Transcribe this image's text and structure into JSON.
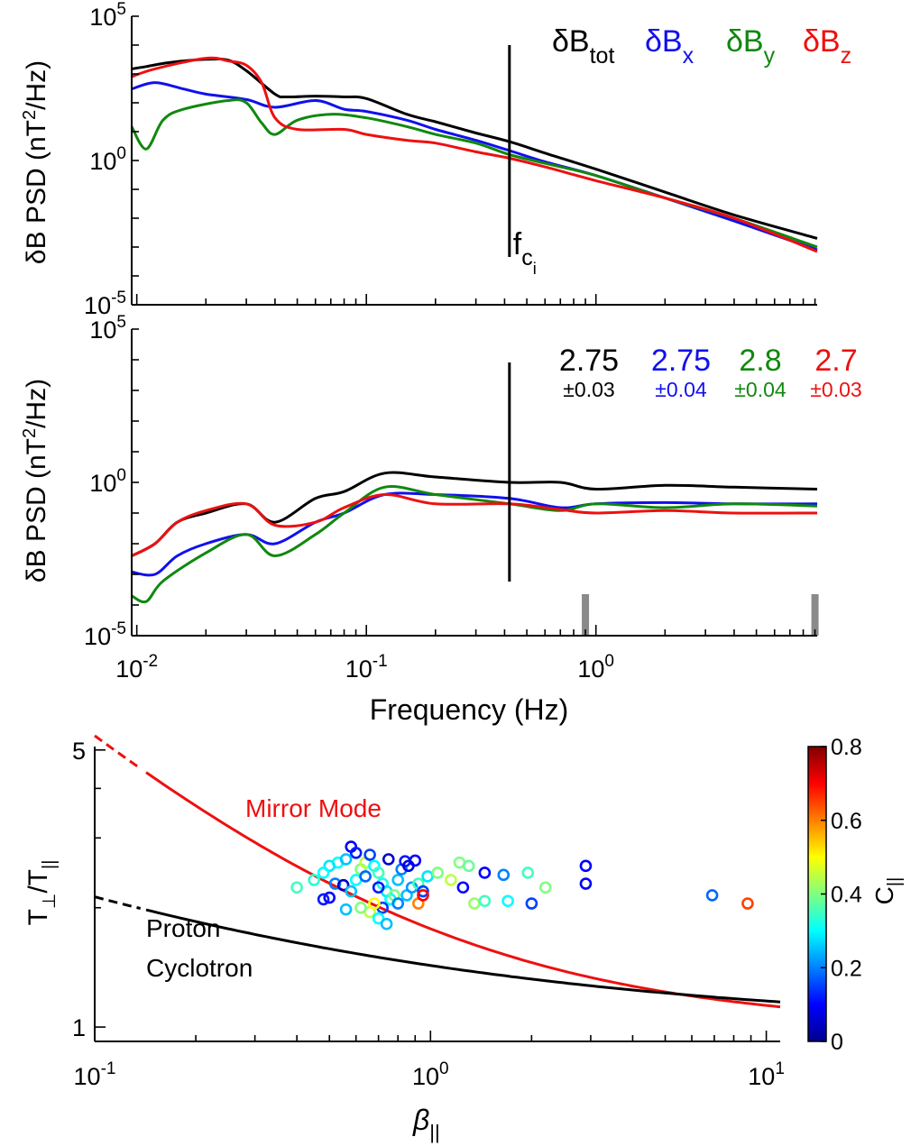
{
  "chart_data": [
    {
      "type": "line",
      "panel": "top",
      "title": "",
      "xlabel": "",
      "ylabel": "δB PSD (nT²/Hz)",
      "yscale": "log",
      "xscale": "log",
      "xlim": [
        0.0095,
        9.2
      ],
      "ylim": [
        1e-05,
        100000
      ],
      "ytick_labels": [
        {
          "value": 100000,
          "base": "10",
          "exp": "5"
        },
        {
          "value": 1,
          "base": "10",
          "exp": "0"
        },
        {
          "value": 1e-05,
          "base": "10",
          "exp": "-5"
        }
      ],
      "vline": {
        "x": 0.42,
        "label_main": "f",
        "label_sub": "c",
        "label_subsub": "i"
      },
      "legend": [
        {
          "key": "tot",
          "prefix": "δB",
          "sub": "tot",
          "color": "#000000"
        },
        {
          "key": "x",
          "prefix": "δB",
          "sub": "x",
          "color": "#1010ee"
        },
        {
          "key": "y",
          "prefix": "δB",
          "sub": "y",
          "color": "#10880e"
        },
        {
          "key": "z",
          "prefix": "δB",
          "sub": "z",
          "color": "#ee1010"
        }
      ],
      "series": [
        {
          "name": "δBtot",
          "color": "#000000",
          "points": [
            [
              0.0095,
              1500
            ],
            [
              0.011,
              1800
            ],
            [
              0.014,
              2500
            ],
            [
              0.02,
              3200
            ],
            [
              0.025,
              3000
            ],
            [
              0.03,
              1300
            ],
            [
              0.04,
              200
            ],
            [
              0.045,
              160
            ],
            [
              0.06,
              170
            ],
            [
              0.08,
              160
            ],
            [
              0.1,
              140
            ],
            [
              0.15,
              40
            ],
            [
              0.2,
              22
            ],
            [
              0.3,
              9
            ],
            [
              0.42,
              4.5
            ],
            [
              0.6,
              1.8
            ],
            [
              1.0,
              0.5
            ],
            [
              2.0,
              0.08
            ],
            [
              4.0,
              0.013
            ],
            [
              9.2,
              0.002
            ]
          ]
        },
        {
          "name": "δBx",
          "color": "#1010ee",
          "points": [
            [
              0.0095,
              300
            ],
            [
              0.012,
              500
            ],
            [
              0.016,
              300
            ],
            [
              0.02,
              200
            ],
            [
              0.03,
              130
            ],
            [
              0.04,
              70
            ],
            [
              0.06,
              120
            ],
            [
              0.08,
              60
            ],
            [
              0.1,
              50
            ],
            [
              0.15,
              25
            ],
            [
              0.2,
              12
            ],
            [
              0.3,
              5
            ],
            [
              0.42,
              2.2
            ],
            [
              0.6,
              0.9
            ],
            [
              1.0,
              0.3
            ],
            [
              2.0,
              0.05
            ],
            [
              4.0,
              0.008
            ],
            [
              9.2,
              0.0008
            ]
          ]
        },
        {
          "name": "δBy",
          "color": "#10880e",
          "points": [
            [
              0.0095,
              15
            ],
            [
              0.011,
              2.5
            ],
            [
              0.013,
              25
            ],
            [
              0.016,
              60
            ],
            [
              0.025,
              120
            ],
            [
              0.03,
              100
            ],
            [
              0.035,
              20
            ],
            [
              0.04,
              8
            ],
            [
              0.05,
              25
            ],
            [
              0.07,
              40
            ],
            [
              0.1,
              30
            ],
            [
              0.15,
              15
            ],
            [
              0.2,
              8
            ],
            [
              0.3,
              4
            ],
            [
              0.42,
              1.6
            ],
            [
              0.6,
              0.8
            ],
            [
              1.0,
              0.3
            ],
            [
              2.0,
              0.05
            ],
            [
              4.0,
              0.01
            ],
            [
              9.2,
              0.001
            ]
          ]
        },
        {
          "name": "δBz",
          "color": "#ee1010",
          "points": [
            [
              0.0095,
              800
            ],
            [
              0.012,
              1500
            ],
            [
              0.02,
              3500
            ],
            [
              0.025,
              2800
            ],
            [
              0.03,
              2000
            ],
            [
              0.035,
              500
            ],
            [
              0.04,
              30
            ],
            [
              0.05,
              12
            ],
            [
              0.08,
              12
            ],
            [
              0.1,
              8
            ],
            [
              0.15,
              5
            ],
            [
              0.2,
              4
            ],
            [
              0.3,
              2
            ],
            [
              0.42,
              1.2
            ],
            [
              0.6,
              0.6
            ],
            [
              1.0,
              0.2
            ],
            [
              2.0,
              0.05
            ],
            [
              4.0,
              0.01
            ],
            [
              9.2,
              0.0007
            ]
          ]
        }
      ]
    },
    {
      "type": "line",
      "panel": "middle",
      "title": "",
      "xlabel": "Frequency (Hz)",
      "ylabel": "δB PSD (nT²/Hz)",
      "yscale": "log",
      "xscale": "log",
      "xlim": [
        0.0095,
        9.2
      ],
      "ylim": [
        1e-05,
        100000
      ],
      "xtick_labels": [
        {
          "value": 0.01,
          "base": "10",
          "exp": "-2"
        },
        {
          "value": 0.1,
          "base": "10",
          "exp": "-1"
        },
        {
          "value": 1,
          "base": "10",
          "exp": "0"
        }
      ],
      "ytick_labels": [
        {
          "value": 100000,
          "base": "10",
          "exp": "5"
        },
        {
          "value": 1,
          "base": "10",
          "exp": "0"
        },
        {
          "value": 1e-05,
          "base": "10",
          "exp": "-5"
        }
      ],
      "vline": {
        "x": 0.42
      },
      "fit_range_markers": [
        0.9,
        9.0
      ],
      "slopes": [
        {
          "value": "2.75",
          "err": "±0.03",
          "color": "#000000"
        },
        {
          "value": "2.75",
          "err": "±0.04",
          "color": "#1010ee"
        },
        {
          "value": "2.8",
          "err": "±0.04",
          "color": "#10880e"
        },
        {
          "value": "2.7",
          "err": "±0.03",
          "color": "#ee1010"
        }
      ],
      "series": [
        {
          "name": "δBtot",
          "color": "#000000",
          "points": [
            [
              0.0095,
              0.004
            ],
            [
              0.012,
              0.01
            ],
            [
              0.015,
              0.05
            ],
            [
              0.02,
              0.1
            ],
            [
              0.03,
              0.2
            ],
            [
              0.04,
              0.05
            ],
            [
              0.06,
              0.3
            ],
            [
              0.08,
              0.5
            ],
            [
              0.12,
              2.0
            ],
            [
              0.2,
              1.5
            ],
            [
              0.42,
              1.0
            ],
            [
              0.7,
              1.0
            ],
            [
              1.0,
              0.6
            ],
            [
              2.0,
              0.8
            ],
            [
              4.0,
              0.7
            ],
            [
              9.2,
              0.6
            ]
          ]
        },
        {
          "name": "δBx",
          "color": "#1010ee",
          "points": [
            [
              0.0095,
              0.0012
            ],
            [
              0.012,
              0.001
            ],
            [
              0.015,
              0.004
            ],
            [
              0.02,
              0.01
            ],
            [
              0.03,
              0.02
            ],
            [
              0.04,
              0.01
            ],
            [
              0.06,
              0.05
            ],
            [
              0.08,
              0.1
            ],
            [
              0.12,
              0.4
            ],
            [
              0.2,
              0.4
            ],
            [
              0.42,
              0.3
            ],
            [
              0.7,
              0.15
            ],
            [
              1.0,
              0.2
            ],
            [
              2.0,
              0.22
            ],
            [
              4.0,
              0.2
            ],
            [
              9.2,
              0.2
            ]
          ]
        },
        {
          "name": "δBy",
          "color": "#10880e",
          "points": [
            [
              0.0095,
              0.0002
            ],
            [
              0.011,
              0.00013
            ],
            [
              0.013,
              0.0006
            ],
            [
              0.02,
              0.005
            ],
            [
              0.03,
              0.02
            ],
            [
              0.04,
              0.004
            ],
            [
              0.06,
              0.02
            ],
            [
              0.08,
              0.1
            ],
            [
              0.12,
              0.7
            ],
            [
              0.2,
              0.4
            ],
            [
              0.42,
              0.2
            ],
            [
              0.7,
              0.12
            ],
            [
              1.0,
              0.2
            ],
            [
              2.0,
              0.15
            ],
            [
              4.0,
              0.2
            ],
            [
              9.2,
              0.17
            ]
          ]
        },
        {
          "name": "δBz",
          "color": "#ee1010",
          "points": [
            [
              0.0095,
              0.004
            ],
            [
              0.012,
              0.01
            ],
            [
              0.015,
              0.05
            ],
            [
              0.02,
              0.12
            ],
            [
              0.03,
              0.2
            ],
            [
              0.04,
              0.04
            ],
            [
              0.06,
              0.05
            ],
            [
              0.08,
              0.15
            ],
            [
              0.12,
              0.4
            ],
            [
              0.2,
              0.2
            ],
            [
              0.42,
              0.2
            ],
            [
              0.7,
              0.13
            ],
            [
              1.0,
              0.1
            ],
            [
              2.0,
              0.12
            ],
            [
              4.0,
              0.1
            ],
            [
              9.2,
              0.1
            ]
          ]
        }
      ]
    },
    {
      "type": "scatter",
      "panel": "bottom",
      "title": "",
      "xlabel_main": "β",
      "xlabel_sub": "||",
      "ylabel_main": "T",
      "ylabel_sub1": "⊥",
      "ylabel_mid": "/T",
      "ylabel_sub2": "||",
      "xscale": "log",
      "yscale": "log",
      "xlim": [
        0.1,
        11
      ],
      "ylim": [
        0.92,
        5.1
      ],
      "xtick_labels": [
        {
          "value": 0.1,
          "base": "10",
          "exp": "-1"
        },
        {
          "value": 1,
          "base": "10",
          "exp": "0"
        },
        {
          "value": 10,
          "base": "10",
          "exp": "1"
        }
      ],
      "ytick_labels": [
        {
          "value": 5,
          "text": "5"
        },
        {
          "value": 1,
          "text": "1"
        }
      ],
      "curves": [
        {
          "name": "Mirror Mode",
          "color": "#ee1010",
          "annotation": "Mirror Mode",
          "formula": {
            "a": 0.77,
            "b": 0.76
          },
          "dashed_until": 0.14
        },
        {
          "name": "Proton Cyclotron",
          "color": "#000000",
          "annotation_line1": "Proton",
          "annotation_line2": "Cyclotron",
          "formula": {
            "a": 0.43,
            "b": 0.42
          },
          "dashed_until": 0.14
        }
      ],
      "colorbar": {
        "label_main": "C",
        "label_sub": "||",
        "range": [
          0,
          0.8
        ],
        "ticks": [
          "0",
          "0.2",
          "0.4",
          "0.6",
          "0.8"
        ],
        "colormap": [
          "#00008f",
          "#0000ff",
          "#0080ff",
          "#00ffff",
          "#80ff80",
          "#ffff00",
          "#ff8000",
          "#ff0000",
          "#800000"
        ]
      },
      "points": [
        [
          0.58,
          2.85,
          0.1
        ],
        [
          0.6,
          2.75,
          0.12
        ],
        [
          0.53,
          2.6,
          0.3
        ],
        [
          0.56,
          2.65,
          0.25
        ],
        [
          0.5,
          2.55,
          0.28
        ],
        [
          0.48,
          2.45,
          0.3
        ],
        [
          0.45,
          2.35,
          0.33
        ],
        [
          0.4,
          2.25,
          0.35
        ],
        [
          0.52,
          2.3,
          0.2
        ],
        [
          0.55,
          2.28,
          0.05
        ],
        [
          0.5,
          2.12,
          0.1
        ],
        [
          0.48,
          2.1,
          0.12
        ],
        [
          0.58,
          2.2,
          0.25
        ],
        [
          0.6,
          2.35,
          0.3
        ],
        [
          0.62,
          2.5,
          0.4
        ],
        [
          0.64,
          2.6,
          0.45
        ],
        [
          0.66,
          2.72,
          0.15
        ],
        [
          0.68,
          2.55,
          0.3
        ],
        [
          0.7,
          2.45,
          0.35
        ],
        [
          0.72,
          2.3,
          0.32
        ],
        [
          0.74,
          2.2,
          0.28
        ],
        [
          0.76,
          2.1,
          0.3
        ],
        [
          0.78,
          2.15,
          0.4
        ],
        [
          0.8,
          2.35,
          0.25
        ],
        [
          0.82,
          2.5,
          0.2
        ],
        [
          0.84,
          2.62,
          0.12
        ],
        [
          0.86,
          2.55,
          0.08
        ],
        [
          0.9,
          2.63,
          0.1
        ],
        [
          0.75,
          2.65,
          0.05
        ],
        [
          0.72,
          2.0,
          0.15
        ],
        [
          0.66,
          1.95,
          0.45
        ],
        [
          0.62,
          2.0,
          0.4
        ],
        [
          0.56,
          1.98,
          0.25
        ],
        [
          0.7,
          1.88,
          0.3
        ],
        [
          0.74,
          1.82,
          0.25
        ],
        [
          0.68,
          2.05,
          0.5
        ],
        [
          0.8,
          2.05,
          0.2
        ],
        [
          0.85,
          2.15,
          0.25
        ],
        [
          0.88,
          2.25,
          0.22
        ],
        [
          0.92,
          2.3,
          0.35
        ],
        [
          0.95,
          2.2,
          0.15
        ],
        [
          0.98,
          2.4,
          0.28
        ],
        [
          1.05,
          2.45,
          0.4
        ],
        [
          1.15,
          2.35,
          0.45
        ],
        [
          1.22,
          2.6,
          0.4
        ],
        [
          1.3,
          2.55,
          0.38
        ],
        [
          1.25,
          2.25,
          0.1
        ],
        [
          1.35,
          2.05,
          0.42
        ],
        [
          1.45,
          2.08,
          0.35
        ],
        [
          1.45,
          2.45,
          0.1
        ],
        [
          1.65,
          2.42,
          0.2
        ],
        [
          1.7,
          2.08,
          0.3
        ],
        [
          1.95,
          2.45,
          0.35
        ],
        [
          2.0,
          2.05,
          0.15
        ],
        [
          2.2,
          2.25,
          0.4
        ],
        [
          2.9,
          2.55,
          0.1
        ],
        [
          2.9,
          2.3,
          0.1
        ],
        [
          0.92,
          2.05,
          0.6
        ],
        [
          0.95,
          2.15,
          0.7
        ],
        [
          6.9,
          2.15,
          0.18
        ],
        [
          8.8,
          2.05,
          0.65
        ],
        [
          0.64,
          2.4,
          0.18
        ],
        [
          0.7,
          2.25,
          0.12
        ]
      ]
    }
  ]
}
